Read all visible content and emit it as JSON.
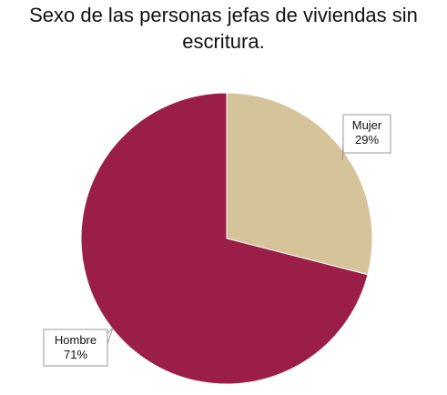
{
  "chart_data": {
    "type": "pie",
    "title_lines": [
      "Sexo de las personas jefas de viviendas sin",
      "escritura."
    ],
    "slices": [
      {
        "label": "Mujer",
        "value": 29,
        "value_label": "29%",
        "color": "#d5c39a"
      },
      {
        "label": "Hombre",
        "value": 71,
        "value_label": "71%",
        "color": "#9b1e48"
      }
    ],
    "start_angle_deg": 0,
    "direction": "clockwise"
  }
}
